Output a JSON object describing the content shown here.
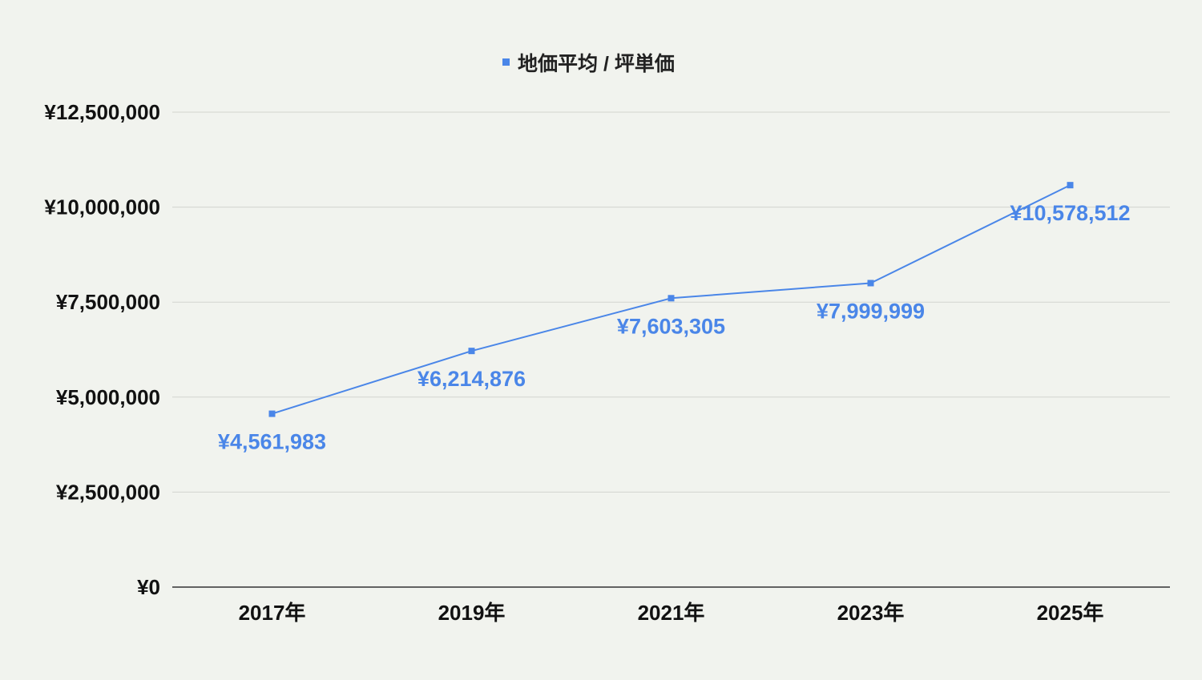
{
  "colors": {
    "series": "#4a86e8",
    "background": "#f1f3ee",
    "grid": "#d2d4cf",
    "axis": "#333333",
    "text": "#111111"
  },
  "chart_data": {
    "type": "line",
    "title": "",
    "xlabel": "",
    "ylabel": "",
    "categories": [
      "2017年",
      "2019年",
      "2021年",
      "2023年",
      "2025年"
    ],
    "series": [
      {
        "name": "地価平均 / 坪単価",
        "values": [
          4561983,
          6214876,
          7603305,
          7999999,
          10578512
        ],
        "labels": [
          "¥4,561,983",
          "¥6,214,876",
          "¥7,603,305",
          "¥7,999,999",
          "¥10,578,512"
        ]
      }
    ],
    "ylim": [
      0,
      12500000
    ],
    "yticks": [
      0,
      2500000,
      5000000,
      7500000,
      10000000,
      12500000
    ],
    "ytick_labels": [
      "¥0",
      "¥2,500,000",
      "¥5,000,000",
      "¥7,500,000",
      "¥10,000,000",
      "¥12,500,000"
    ],
    "grid": true,
    "legend": "top-center",
    "marker": "square"
  }
}
